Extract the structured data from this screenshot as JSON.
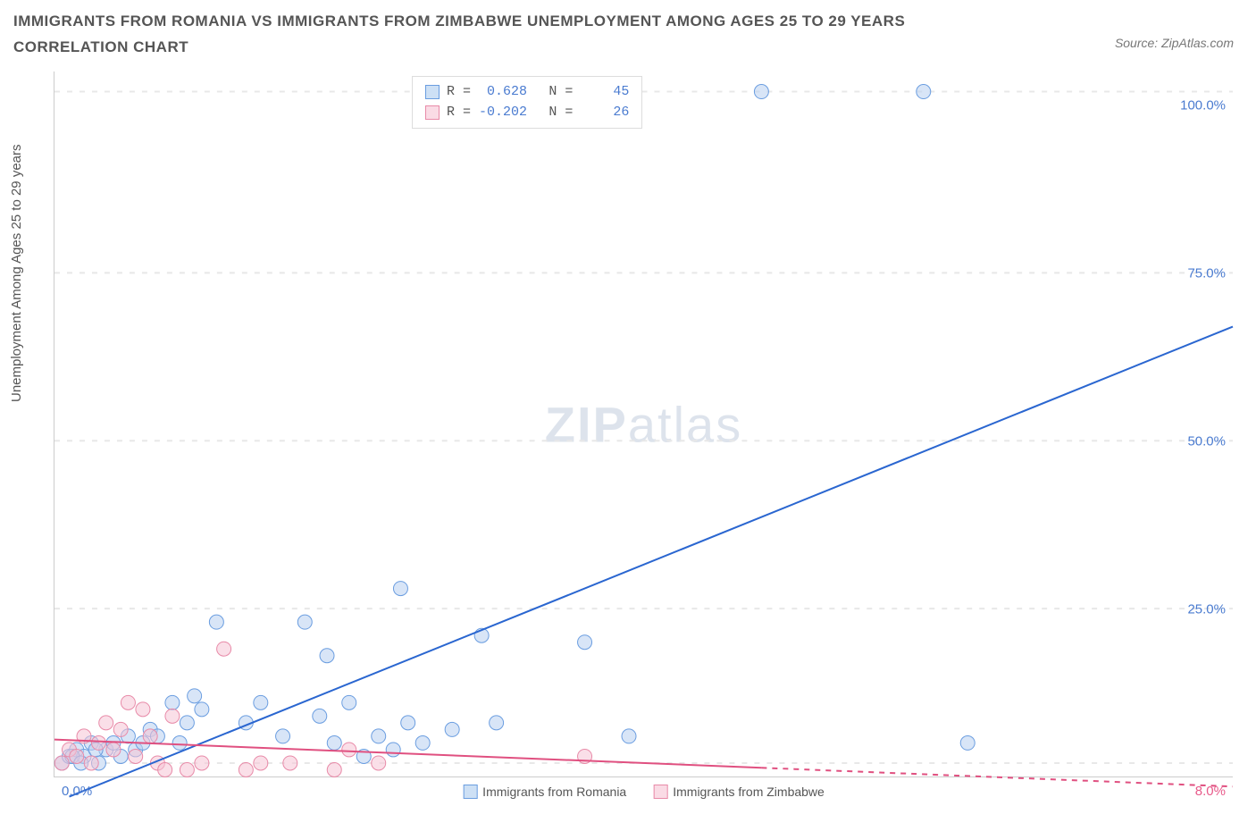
{
  "title": "IMMIGRANTS FROM ROMANIA VS IMMIGRANTS FROM ZIMBABWE UNEMPLOYMENT AMONG AGES 25 TO 29 YEARS CORRELATION CHART",
  "source": "Source: ZipAtlas.com",
  "ylabel": "Unemployment Among Ages 25 to 29 years",
  "watermark_a": "ZIP",
  "watermark_b": "atlas",
  "chart": {
    "type": "scatter",
    "background_color": "#ffffff",
    "grid_color": "#e8e8e8",
    "axis_color": "#cccccc",
    "xlim": [
      0,
      8
    ],
    "ylim": [
      0,
      105
    ],
    "left_yticks_pct": [
      25,
      50,
      75,
      100
    ],
    "right_ytick_labels": [
      "25.0%",
      "50.0%",
      "75.0%",
      "100.0%"
    ],
    "x_left_label": "0.0%",
    "x_right_label": "8.0%",
    "gridlines_y": [
      2,
      25,
      50,
      75,
      102
    ],
    "series": [
      {
        "name": "Immigrants from Romania",
        "color_fill": "#b8d0f0",
        "color_stroke": "#6a9de0",
        "swatch_fill": "#cde0f5",
        "swatch_stroke": "#6a9de0",
        "marker_radius": 8,
        "fill_opacity": 0.55,
        "R": "0.628",
        "N": "45",
        "trend": {
          "x1": 0.1,
          "y1": -3,
          "x2": 8.0,
          "y2": 67,
          "color": "#2a66d0",
          "width": 2,
          "dash_after_x": null
        },
        "points": [
          [
            0.05,
            2
          ],
          [
            0.1,
            3
          ],
          [
            0.15,
            4
          ],
          [
            0.2,
            3
          ],
          [
            0.25,
            5
          ],
          [
            0.3,
            2
          ],
          [
            0.35,
            4
          ],
          [
            0.4,
            5
          ],
          [
            0.45,
            3
          ],
          [
            0.5,
            6
          ],
          [
            0.55,
            4
          ],
          [
            0.6,
            5
          ],
          [
            0.65,
            7
          ],
          [
            0.7,
            6
          ],
          [
            0.8,
            11
          ],
          [
            0.85,
            5
          ],
          [
            0.9,
            8
          ],
          [
            0.95,
            12
          ],
          [
            1.0,
            10
          ],
          [
            1.1,
            23
          ],
          [
            1.3,
            8
          ],
          [
            1.4,
            11
          ],
          [
            1.55,
            6
          ],
          [
            1.7,
            23
          ],
          [
            1.8,
            9
          ],
          [
            1.85,
            18
          ],
          [
            1.9,
            5
          ],
          [
            2.0,
            11
          ],
          [
            2.1,
            3
          ],
          [
            2.2,
            6
          ],
          [
            2.3,
            4
          ],
          [
            2.35,
            28
          ],
          [
            2.4,
            8
          ],
          [
            2.5,
            5
          ],
          [
            2.7,
            7
          ],
          [
            2.9,
            21
          ],
          [
            3.0,
            8
          ],
          [
            3.6,
            20
          ],
          [
            3.9,
            6
          ],
          [
            4.8,
            102
          ],
          [
            5.9,
            102
          ],
          [
            6.2,
            5
          ],
          [
            0.12,
            3
          ],
          [
            0.18,
            2
          ],
          [
            0.28,
            4
          ]
        ]
      },
      {
        "name": "Immigrants from Zimbabwe",
        "color_fill": "#f5c5d5",
        "color_stroke": "#e88aa8",
        "swatch_fill": "#fadbe5",
        "swatch_stroke": "#e88aa8",
        "marker_radius": 8,
        "fill_opacity": 0.55,
        "R": "-0.202",
        "N": "26",
        "trend": {
          "x1": 0.0,
          "y1": 5.5,
          "x2": 8.0,
          "y2": -1.5,
          "color": "#e05080",
          "width": 2,
          "dash_after_x": 4.8
        },
        "points": [
          [
            0.05,
            2
          ],
          [
            0.1,
            4
          ],
          [
            0.15,
            3
          ],
          [
            0.2,
            6
          ],
          [
            0.25,
            2
          ],
          [
            0.3,
            5
          ],
          [
            0.35,
            8
          ],
          [
            0.4,
            4
          ],
          [
            0.45,
            7
          ],
          [
            0.5,
            11
          ],
          [
            0.55,
            3
          ],
          [
            0.6,
            10
          ],
          [
            0.65,
            6
          ],
          [
            0.7,
            2
          ],
          [
            0.75,
            1
          ],
          [
            0.8,
            9
          ],
          [
            0.9,
            1
          ],
          [
            1.0,
            2
          ],
          [
            1.15,
            19
          ],
          [
            1.3,
            1
          ],
          [
            1.4,
            2
          ],
          [
            1.6,
            2
          ],
          [
            1.9,
            1
          ],
          [
            2.0,
            4
          ],
          [
            2.2,
            2
          ],
          [
            3.6,
            3
          ]
        ]
      }
    ],
    "legend_bottom": [
      {
        "label": "Immigrants from Romania",
        "fill": "#cde0f5",
        "stroke": "#6a9de0"
      },
      {
        "label": "Immigrants from Zimbabwe",
        "fill": "#fadbe5",
        "stroke": "#e88aa8"
      }
    ],
    "stats_label_R": "R =",
    "stats_label_N": "N =",
    "stats_value_color": "#4a7bd0"
  }
}
